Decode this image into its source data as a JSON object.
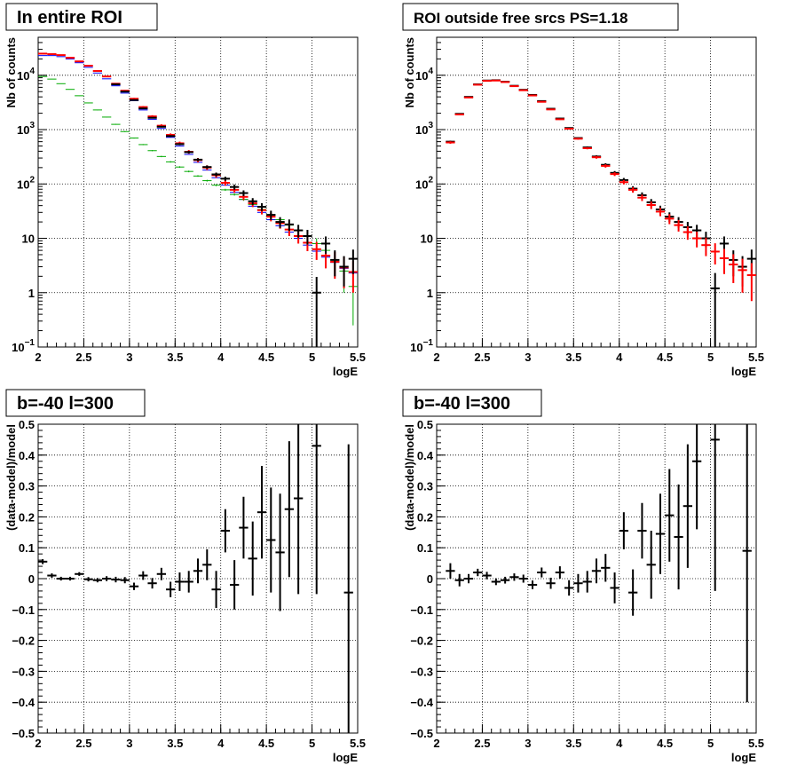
{
  "chart_data": [
    {
      "type": "scatter",
      "title": "In entire ROI",
      "xlabel": "logE",
      "ylabel": "Nb of counts",
      "xlim": [
        2,
        5.5
      ],
      "ylim": [
        0.1,
        50000
      ],
      "yscale": "log",
      "grid": true,
      "xticks": [
        "2",
        "2.5",
        "3",
        "3.5",
        "4",
        "4.5",
        "5",
        "5.5"
      ],
      "yticks": [
        {
          "value": 0.1,
          "label": "10",
          "exp": "−1"
        },
        {
          "value": 1,
          "label": "1",
          "exp": ""
        },
        {
          "value": 10,
          "label": "10",
          "exp": ""
        },
        {
          "value": 100,
          "label": "10",
          "exp": "2"
        },
        {
          "value": 1000,
          "label": "10",
          "exp": "3"
        },
        {
          "value": 10000,
          "label": "10",
          "exp": "4"
        }
      ],
      "series": [
        {
          "color": "#0000ff",
          "errors": false,
          "x": [
            2.05,
            2.15,
            2.25,
            2.35,
            2.45,
            2.55,
            2.65,
            2.75,
            2.85,
            2.95,
            3.05,
            3.15,
            3.25,
            3.35,
            3.45,
            3.55,
            3.65,
            3.75,
            3.85,
            3.95,
            4.05,
            4.15,
            4.25,
            4.35,
            4.45,
            4.55,
            4.65,
            4.75,
            4.85,
            4.95,
            5.05,
            5.15,
            5.25,
            5.35,
            5.45
          ],
          "y": [
            23000,
            23000,
            22000,
            20000,
            17000,
            14000,
            11000,
            8600,
            6400,
            4700,
            3400,
            2300,
            1550,
            1050,
            720,
            500,
            350,
            250,
            180,
            130,
            95,
            70,
            52,
            39,
            30,
            22,
            17,
            13,
            10,
            7.5,
            5.8,
            4.5,
            3.6,
            2.8,
            2.3
          ]
        },
        {
          "color": "#00aa00",
          "errors": true,
          "x": [
            2.05,
            2.15,
            2.25,
            2.35,
            2.45,
            2.55,
            2.65,
            2.75,
            2.85,
            2.95,
            3.05,
            3.15,
            3.25,
            3.35,
            3.45,
            3.55,
            3.65,
            3.75,
            3.85,
            3.95,
            4.05,
            4.15,
            4.25,
            4.35,
            4.45,
            4.55,
            4.65,
            4.75,
            4.85,
            4.95,
            5.05,
            5.15,
            5.25,
            5.35,
            5.45
          ],
          "y": [
            9500,
            8500,
            7000,
            5500,
            4200,
            3100,
            2300,
            1700,
            1250,
            920,
            700,
            530,
            410,
            320,
            255,
            205,
            170,
            140,
            115,
            95,
            78,
            64,
            52,
            42,
            34,
            27,
            22,
            17.5,
            14,
            11,
            8,
            6,
            4,
            2.5,
            1.3
          ],
          "err": [
            60,
            55,
            50,
            45,
            40,
            35,
            30,
            25,
            22,
            18,
            15,
            12,
            10,
            9,
            8,
            7,
            6,
            5,
            4.5,
            4,
            3.5,
            3,
            3,
            2.5,
            2.5,
            2.2,
            2,
            2,
            1.8,
            1.8,
            2,
            2,
            1.8,
            1.5,
            1.05
          ]
        },
        {
          "color": "#ff0000",
          "errors": true,
          "x": [
            2.05,
            2.15,
            2.25,
            2.35,
            2.45,
            2.55,
            2.65,
            2.75,
            2.85,
            2.95,
            3.05,
            3.15,
            3.25,
            3.35,
            3.45,
            3.55,
            3.65,
            3.75,
            3.85,
            3.95,
            4.05,
            4.15,
            4.25,
            4.35,
            4.45,
            4.55,
            4.65,
            4.75,
            4.85,
            4.95,
            5.05,
            5.15,
            5.25,
            5.35,
            5.45
          ],
          "y": [
            25000,
            24500,
            23500,
            21000,
            18000,
            15000,
            12000,
            9500,
            7000,
            5200,
            3700,
            2600,
            1750,
            1180,
            800,
            560,
            390,
            275,
            200,
            145,
            105,
            78,
            58,
            44,
            33,
            25,
            19,
            14.5,
            11,
            8.3,
            6.3,
            4.8,
            3.7,
            2.9,
            2.4
          ],
          "err": [
            300,
            300,
            280,
            270,
            250,
            230,
            210,
            190,
            170,
            150,
            130,
            110,
            90,
            70,
            50,
            40,
            30,
            25,
            20,
            15,
            12,
            9,
            7.5,
            6.5,
            5.5,
            4.5,
            4,
            3.5,
            3,
            2.5,
            2.3,
            2,
            1.9,
            1.7,
            1.4
          ]
        },
        {
          "color": "#000000",
          "errors": true,
          "x": [
            2.85,
            2.95,
            3.05,
            3.15,
            3.25,
            3.35,
            3.45,
            3.55,
            3.65,
            3.75,
            3.85,
            3.95,
            4.05,
            4.15,
            4.25,
            4.35,
            4.45,
            4.55,
            4.65,
            4.75,
            4.85,
            4.95,
            5.05,
            5.15,
            5.25,
            5.35,
            5.45
          ],
          "y": [
            6800,
            5000,
            3500,
            2450,
            1650,
            1130,
            760,
            540,
            385,
            280,
            205,
            150,
            125,
            88,
            68,
            48,
            38,
            27,
            20,
            18,
            14,
            11,
            1.0,
            8.0,
            4.0,
            3.0,
            4.2
          ],
          "err": [
            83,
            71,
            59,
            50,
            41,
            34,
            28,
            23,
            20,
            17,
            14,
            12,
            11,
            9.4,
            8.2,
            6.9,
            6.2,
            5.2,
            4.5,
            4.2,
            3.7,
            3.3,
            0.95,
            2.8,
            2.0,
            1.7,
            2.0
          ]
        }
      ]
    },
    {
      "type": "scatter",
      "title": "ROI outside free srcs PS=1.18",
      "xlabel": "logE",
      "ylabel": "Nb of counts",
      "xlim": [
        2,
        5.5
      ],
      "ylim": [
        0.1,
        50000
      ],
      "yscale": "log",
      "grid": true,
      "xticks": [
        "2",
        "2.5",
        "3",
        "3.5",
        "4",
        "4.5",
        "5",
        "5.5"
      ],
      "yticks": [
        {
          "value": 0.1,
          "label": "10",
          "exp": "−1"
        },
        {
          "value": 1,
          "label": "1",
          "exp": ""
        },
        {
          "value": 10,
          "label": "10",
          "exp": ""
        },
        {
          "value": 100,
          "label": "10",
          "exp": "2"
        },
        {
          "value": 1000,
          "label": "10",
          "exp": "3"
        },
        {
          "value": 10000,
          "label": "10",
          "exp": "4"
        }
      ],
      "series": [
        {
          "color": "#000000",
          "errors": true,
          "x": [
            2.15,
            2.25,
            2.35,
            2.45,
            2.55,
            2.65,
            2.75,
            2.85,
            2.95,
            3.05,
            3.15,
            3.25,
            3.35,
            3.45,
            3.55,
            3.65,
            3.75,
            3.85,
            3.95,
            4.05,
            4.15,
            4.25,
            4.35,
            4.45,
            4.55,
            4.65,
            4.75,
            4.85,
            4.95,
            5.05,
            5.15,
            5.25,
            5.35,
            5.45
          ],
          "y": [
            600,
            1950,
            4000,
            6800,
            8000,
            8100,
            7600,
            6400,
            5400,
            4350,
            3350,
            2420,
            1600,
            1070,
            700,
            470,
            320,
            225,
            160,
            118,
            82,
            62,
            46,
            34,
            25,
            20,
            16,
            14,
            10,
            1.2,
            8.0,
            4.0,
            3.0,
            4.2
          ],
          "err": [
            24,
            44,
            63,
            82,
            89,
            90,
            87,
            80,
            73,
            66,
            58,
            49,
            40,
            33,
            26,
            22,
            18,
            15,
            12.6,
            10.9,
            9,
            7.9,
            6.8,
            5.8,
            5,
            4.5,
            4,
            3.7,
            3.2,
            1.1,
            2.8,
            2.0,
            1.7,
            2.0
          ]
        },
        {
          "color": "#ff0000",
          "errors": true,
          "x": [
            2.15,
            2.25,
            2.35,
            2.45,
            2.55,
            2.65,
            2.75,
            2.85,
            2.95,
            3.05,
            3.15,
            3.25,
            3.35,
            3.45,
            3.55,
            3.65,
            3.75,
            3.85,
            3.95,
            4.05,
            4.15,
            4.25,
            4.35,
            4.45,
            4.55,
            4.65,
            4.75,
            4.85,
            4.95,
            5.05,
            5.15,
            5.25,
            5.35,
            5.45
          ],
          "y": [
            580,
            1900,
            3900,
            6700,
            7900,
            8000,
            7500,
            6300,
            5300,
            4250,
            3250,
            2350,
            1550,
            1040,
            680,
            455,
            310,
            215,
            152,
            108,
            78,
            56,
            41,
            31,
            23,
            17.5,
            13,
            10,
            7.5,
            5.7,
            4.3,
            3.3,
            2.6,
            2.1
          ],
          "err": [
            30,
            50,
            70,
            90,
            95,
            95,
            90,
            85,
            80,
            70,
            60,
            50,
            40,
            32,
            26,
            21,
            18,
            15,
            12,
            10,
            9,
            7.5,
            6.5,
            5.5,
            4.8,
            4.2,
            3.6,
            3.2,
            2.8,
            2.4,
            2.1,
            1.8,
            1.6,
            1.4
          ]
        }
      ]
    },
    {
      "type": "scatter",
      "title": "b=-40 l=300",
      "xlabel": "logE",
      "ylabel": "(data-model)/model",
      "xlim": [
        2,
        5.5
      ],
      "ylim": [
        -0.5,
        0.5
      ],
      "yscale": "linear",
      "grid": true,
      "xticks": [
        "2",
        "2.5",
        "3",
        "3.5",
        "4",
        "4.5",
        "5",
        "5.5"
      ],
      "yticks": [
        {
          "value": -0.5,
          "label": "−0.5",
          "exp": ""
        },
        {
          "value": -0.4,
          "label": "−0.4",
          "exp": ""
        },
        {
          "value": -0.3,
          "label": "−0.3",
          "exp": ""
        },
        {
          "value": -0.2,
          "label": "−0.2",
          "exp": ""
        },
        {
          "value": -0.1,
          "label": "−0.1",
          "exp": ""
        },
        {
          "value": 0,
          "label": "0",
          "exp": ""
        },
        {
          "value": 0.1,
          "label": "0.1",
          "exp": ""
        },
        {
          "value": 0.2,
          "label": "0.2",
          "exp": ""
        },
        {
          "value": 0.3,
          "label": "0.3",
          "exp": ""
        },
        {
          "value": 0.4,
          "label": "0.4",
          "exp": ""
        },
        {
          "value": 0.5,
          "label": "0.5",
          "exp": ""
        }
      ],
      "series": [
        {
          "color": "#000000",
          "errors": true,
          "x": [
            2.05,
            2.15,
            2.25,
            2.35,
            2.45,
            2.55,
            2.65,
            2.75,
            2.85,
            2.95,
            3.05,
            3.15,
            3.25,
            3.35,
            3.45,
            3.55,
            3.65,
            3.75,
            3.85,
            3.95,
            4.05,
            4.15,
            4.25,
            4.35,
            4.45,
            4.55,
            4.65,
            4.75,
            4.85,
            5.05,
            5.4
          ],
          "y": [
            0.055,
            0.01,
            0.0,
            0.0,
            0.015,
            -0.002,
            -0.005,
            0.0,
            -0.003,
            -0.005,
            -0.025,
            0.01,
            -0.015,
            0.015,
            -0.035,
            -0.01,
            -0.01,
            0.025,
            0.045,
            -0.035,
            0.155,
            -0.02,
            0.165,
            0.065,
            0.215,
            0.125,
            0.085,
            0.225,
            0.26,
            0.43,
            -0.045
          ],
          "err": [
            0.008,
            0.007,
            0.006,
            0.006,
            0.006,
            0.007,
            0.007,
            0.008,
            0.009,
            0.01,
            0.012,
            0.014,
            0.017,
            0.02,
            0.025,
            0.03,
            0.035,
            0.04,
            0.05,
            0.06,
            0.07,
            0.08,
            0.1,
            0.12,
            0.15,
            0.17,
            0.19,
            0.22,
            0.31,
            0.48,
            0.48
          ]
        }
      ]
    },
    {
      "type": "scatter",
      "title": "b=-40 l=300",
      "xlabel": "logE",
      "ylabel": "(data-model)/model",
      "xlim": [
        2,
        5.5
      ],
      "ylim": [
        -0.5,
        0.5
      ],
      "yscale": "linear",
      "grid": true,
      "xticks": [
        "2",
        "2.5",
        "3",
        "3.5",
        "4",
        "4.5",
        "5",
        "5.5"
      ],
      "yticks": [
        {
          "value": -0.5,
          "label": "−0.5",
          "exp": ""
        },
        {
          "value": -0.4,
          "label": "−0.4",
          "exp": ""
        },
        {
          "value": -0.3,
          "label": "−0.3",
          "exp": ""
        },
        {
          "value": -0.2,
          "label": "−0.2",
          "exp": ""
        },
        {
          "value": -0.1,
          "label": "−0.1",
          "exp": ""
        },
        {
          "value": 0,
          "label": "0",
          "exp": ""
        },
        {
          "value": 0.1,
          "label": "0.1",
          "exp": ""
        },
        {
          "value": 0.2,
          "label": "0.2",
          "exp": ""
        },
        {
          "value": 0.3,
          "label": "0.3",
          "exp": ""
        },
        {
          "value": 0.4,
          "label": "0.4",
          "exp": ""
        },
        {
          "value": 0.5,
          "label": "0.5",
          "exp": ""
        }
      ],
      "series": [
        {
          "color": "#000000",
          "errors": true,
          "x": [
            2.15,
            2.25,
            2.35,
            2.45,
            2.55,
            2.65,
            2.75,
            2.85,
            2.95,
            3.05,
            3.15,
            3.25,
            3.35,
            3.45,
            3.55,
            3.65,
            3.75,
            3.85,
            3.95,
            4.05,
            4.15,
            4.25,
            4.35,
            4.45,
            4.55,
            4.65,
            4.75,
            4.85,
            5.05,
            5.4
          ],
          "y": [
            0.025,
            -0.005,
            0.0,
            0.02,
            0.01,
            -0.01,
            -0.005,
            0.005,
            0.0,
            -0.02,
            0.02,
            -0.015,
            0.02,
            -0.03,
            -0.015,
            -0.01,
            0.025,
            0.035,
            -0.03,
            0.155,
            -0.045,
            0.155,
            0.045,
            0.145,
            0.205,
            0.135,
            0.235,
            0.38,
            0.45,
            0.09
          ],
          "err": [
            0.025,
            0.02,
            0.015,
            0.012,
            0.012,
            0.011,
            0.011,
            0.012,
            0.013,
            0.014,
            0.016,
            0.018,
            0.02,
            0.025,
            0.03,
            0.035,
            0.04,
            0.045,
            0.05,
            0.06,
            0.075,
            0.09,
            0.11,
            0.13,
            0.15,
            0.17,
            0.2,
            0.22,
            0.49,
            0.49
          ]
        }
      ]
    }
  ]
}
